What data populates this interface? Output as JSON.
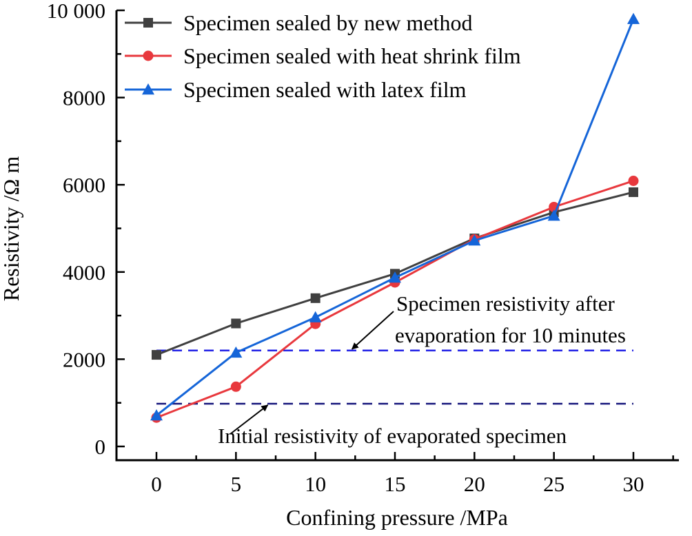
{
  "chart_data": {
    "type": "line",
    "title": "",
    "xlabel": "Confining pressure /MPa",
    "ylabel": "Resistivity /Ω m",
    "x": [
      0,
      5,
      10,
      15,
      20,
      25,
      30
    ],
    "xticks": [
      0,
      5,
      10,
      15,
      20,
      25,
      30
    ],
    "xtick_labels": [
      "0",
      "5",
      "10",
      "15",
      "20",
      "25",
      "30"
    ],
    "yticks": [
      0,
      2000,
      4000,
      6000,
      8000,
      10000
    ],
    "ytick_labels": [
      "0",
      "2000",
      "4000",
      "6000",
      "8000",
      "10 000"
    ],
    "xlim": [
      -2.5,
      32.5
    ],
    "ylim": [
      -300,
      10000
    ],
    "grid": false,
    "legend_position": "top-left",
    "series": [
      {
        "name": "Specimen sealed by new method",
        "color": "#404040",
        "marker": "square",
        "values": [
          2100,
          2820,
          3400,
          3960,
          4770,
          5370,
          5830
        ]
      },
      {
        "name": "Specimen sealed with heat shrink film",
        "color": "#e8383d",
        "marker": "circle",
        "values": [
          660,
          1370,
          2810,
          3760,
          4750,
          5490,
          6090
        ]
      },
      {
        "name": "Specimen sealed with latex film",
        "color": "#1565d8",
        "marker": "triangle",
        "values": [
          710,
          2150,
          2960,
          3870,
          4720,
          5290,
          9800
        ]
      }
    ],
    "reference_lines": [
      {
        "name": "Specimen resistivity after evaporation for 10 minutes",
        "value": 2200,
        "color": "#1f1fe6",
        "style": "dashed",
        "x_range": [
          0,
          30
        ]
      },
      {
        "name": "Initial resistivity of evaporated specimen",
        "value": 980,
        "color": "#14147a",
        "style": "dashed",
        "x_range": [
          0,
          30
        ]
      }
    ],
    "annotations": [
      {
        "lines": [
          "Specimen resistivity after",
          "evaporation for 10 minutes"
        ],
        "points_to": {
          "x": 12.3,
          "y": 2200
        }
      },
      {
        "lines": [
          "Initial resistivity of evaporated specimen"
        ],
        "points_to": {
          "x": 7,
          "y": 980
        }
      }
    ]
  }
}
